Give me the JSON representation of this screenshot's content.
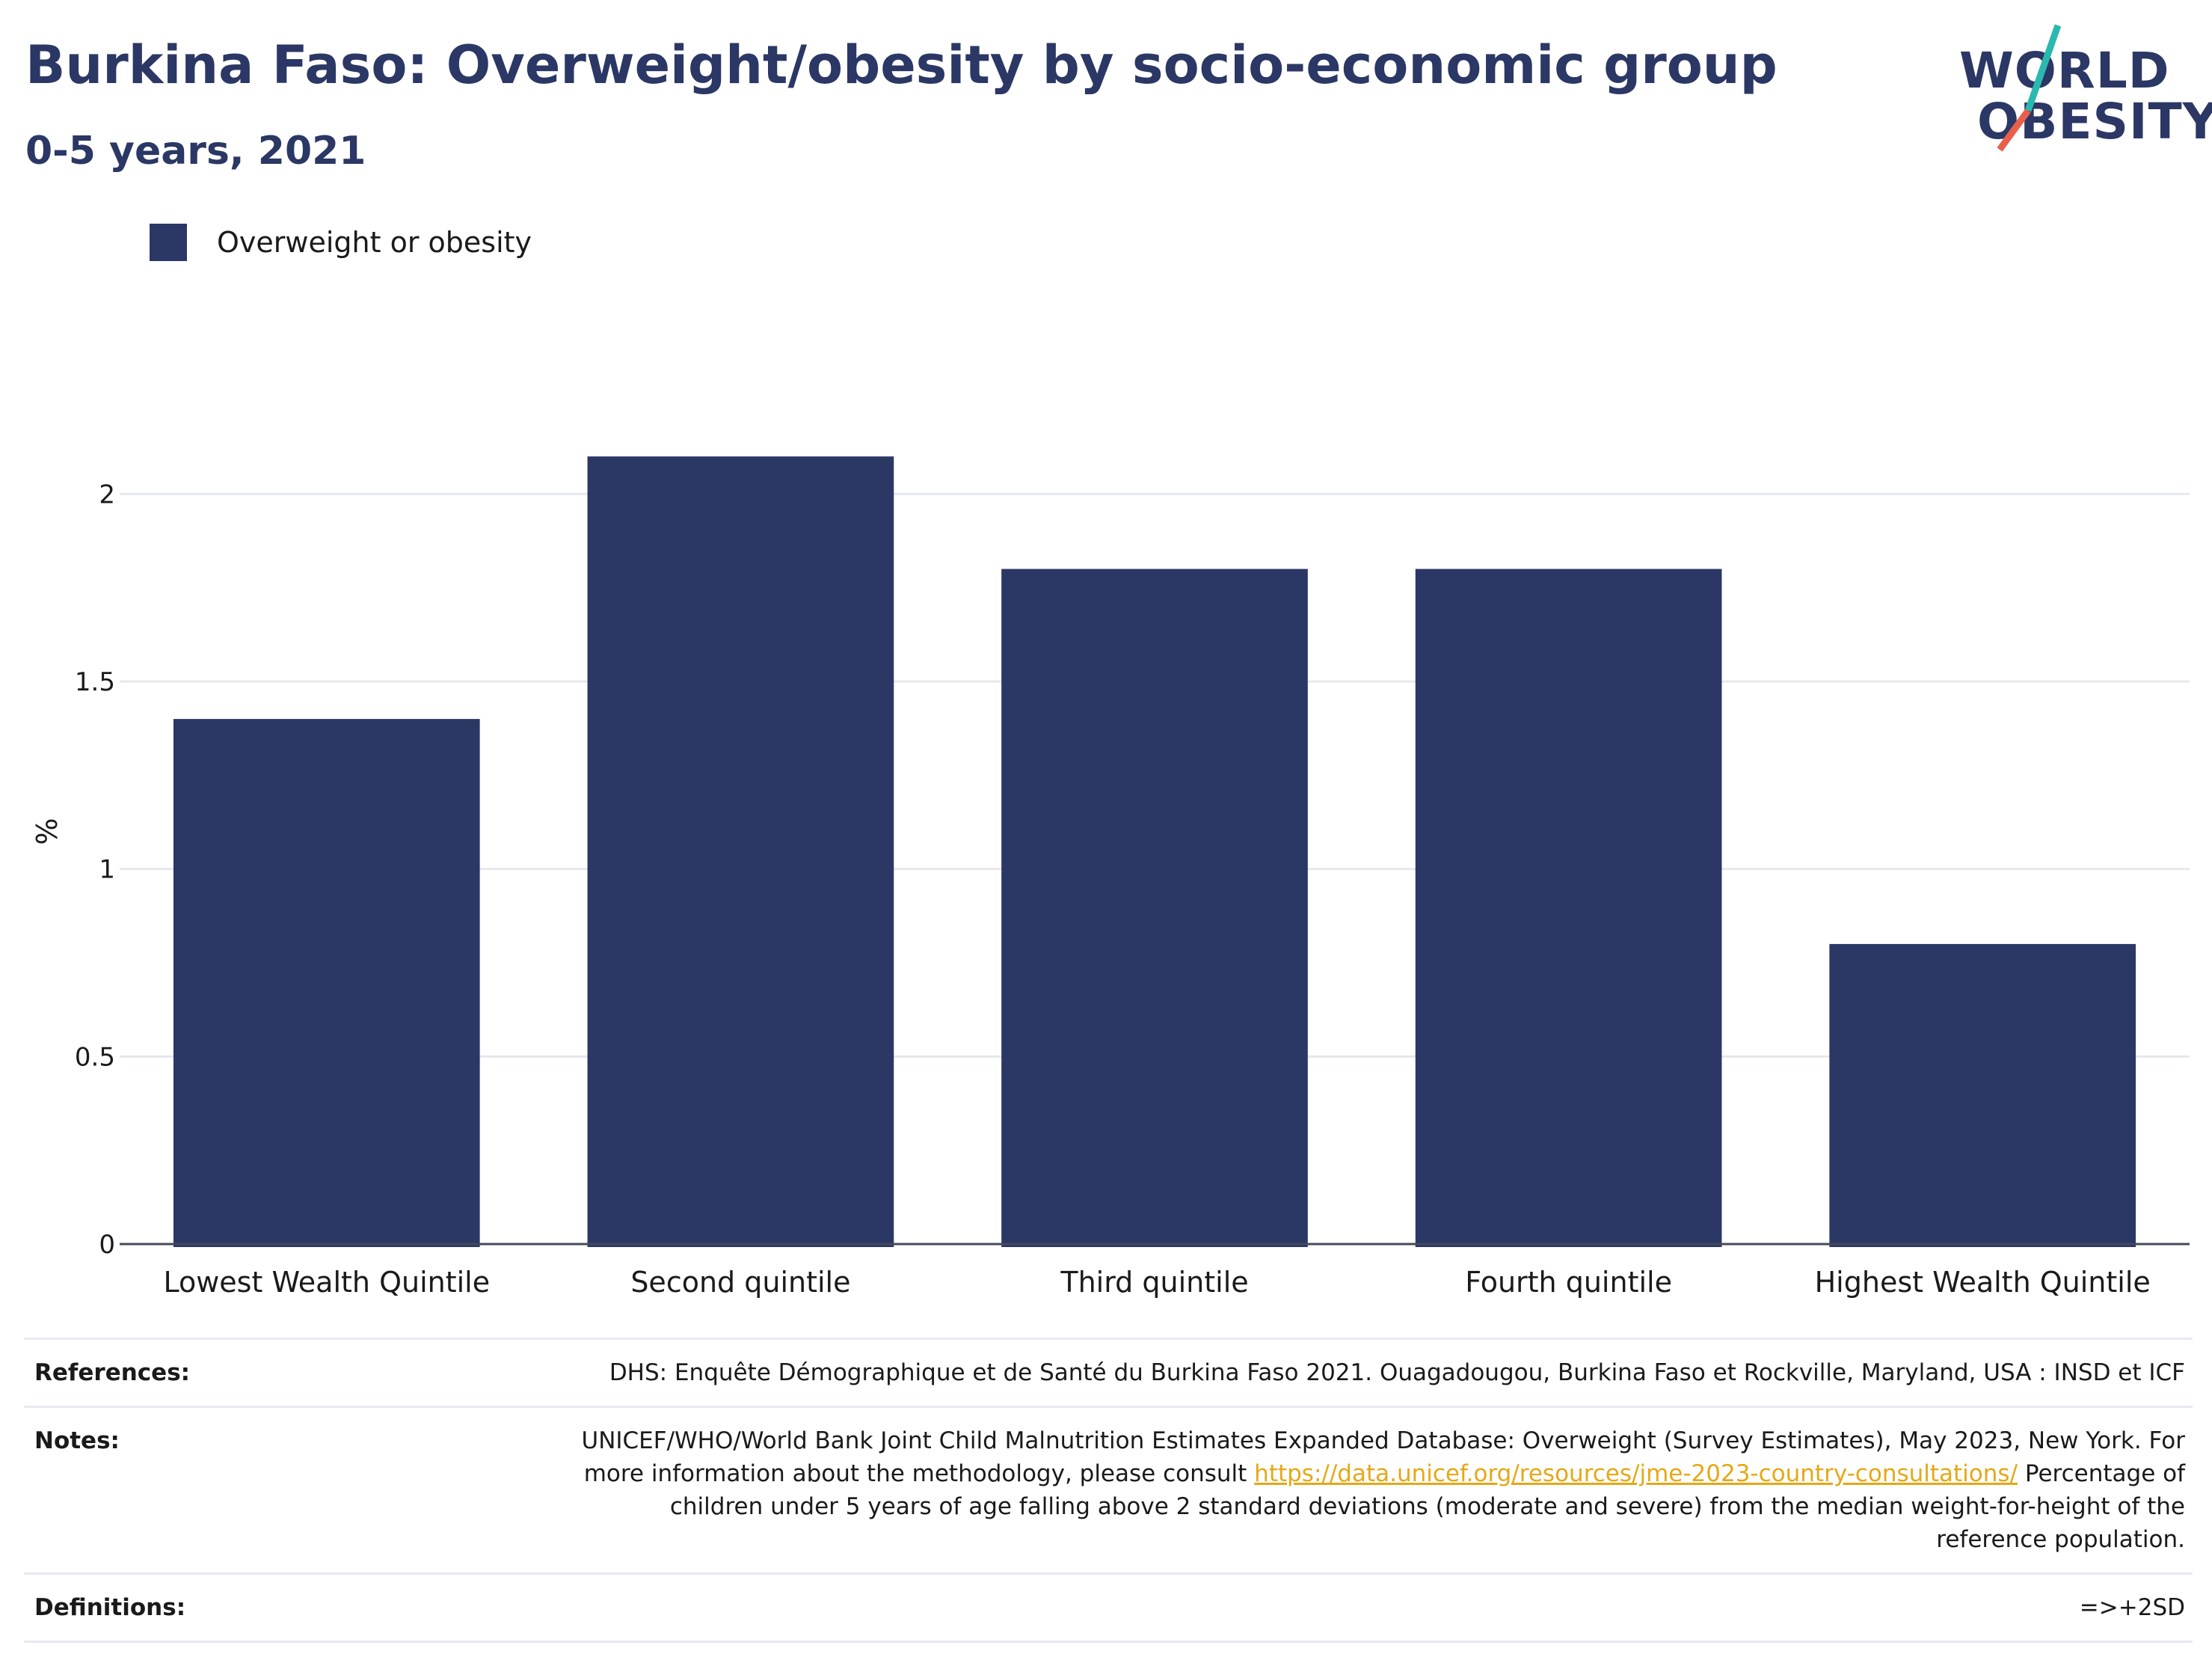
{
  "header": {
    "title": "Burkina Faso: Overweight/obesity by socio-economic group",
    "subtitle": "0-5 years, 2021"
  },
  "logo": {
    "line1": "WORLD",
    "line2": "OBESITY",
    "slash_colors": [
      "#2ab8b0",
      "#e8604c"
    ]
  },
  "legend": {
    "label": "Overweight or obesity",
    "color": "#2b3764"
  },
  "chart_data": {
    "type": "bar",
    "categories": [
      "Lowest Wealth Quintile",
      "Second quintile",
      "Third quintile",
      "Fourth quintile",
      "Highest Wealth Quintile"
    ],
    "series": [
      {
        "name": "Overweight or obesity",
        "values": [
          1.4,
          2.1,
          1.8,
          1.8,
          0.8
        ]
      }
    ],
    "ylabel": "%",
    "ylim": [
      0,
      2.2
    ],
    "yticks": [
      0,
      0.5,
      1,
      1.5,
      2
    ],
    "ytick_labels": [
      "0",
      "0.5",
      "1",
      "1.5",
      "2"
    ],
    "grid": true,
    "legend_position": "top-left",
    "bar_color": "#2b3764"
  },
  "notes": {
    "references_label": "References:",
    "references_text": "DHS: Enquête Démographique et de Santé du Burkina Faso 2021. Ouagadougou, Burkina Faso et Rockville, Maryland, USA : INSD et ICF",
    "notes_label": "Notes:",
    "notes_text_1": "UNICEF/WHO/World Bank Joint Child Malnutrition Estimates Expanded Database: Overweight (Survey Estimates), May 2023, New York. For more information about the methodology, please consult ",
    "notes_link": "https://data.unicef.org/resources/jme-2023-country-consultations/",
    "notes_text_2": "Percentage of children under 5 years of age falling above 2 standard deviations (moderate and severe) from the median weight-for-height of the reference population.",
    "definitions_label": "Definitions:",
    "definitions_text": "=>+2SD"
  }
}
